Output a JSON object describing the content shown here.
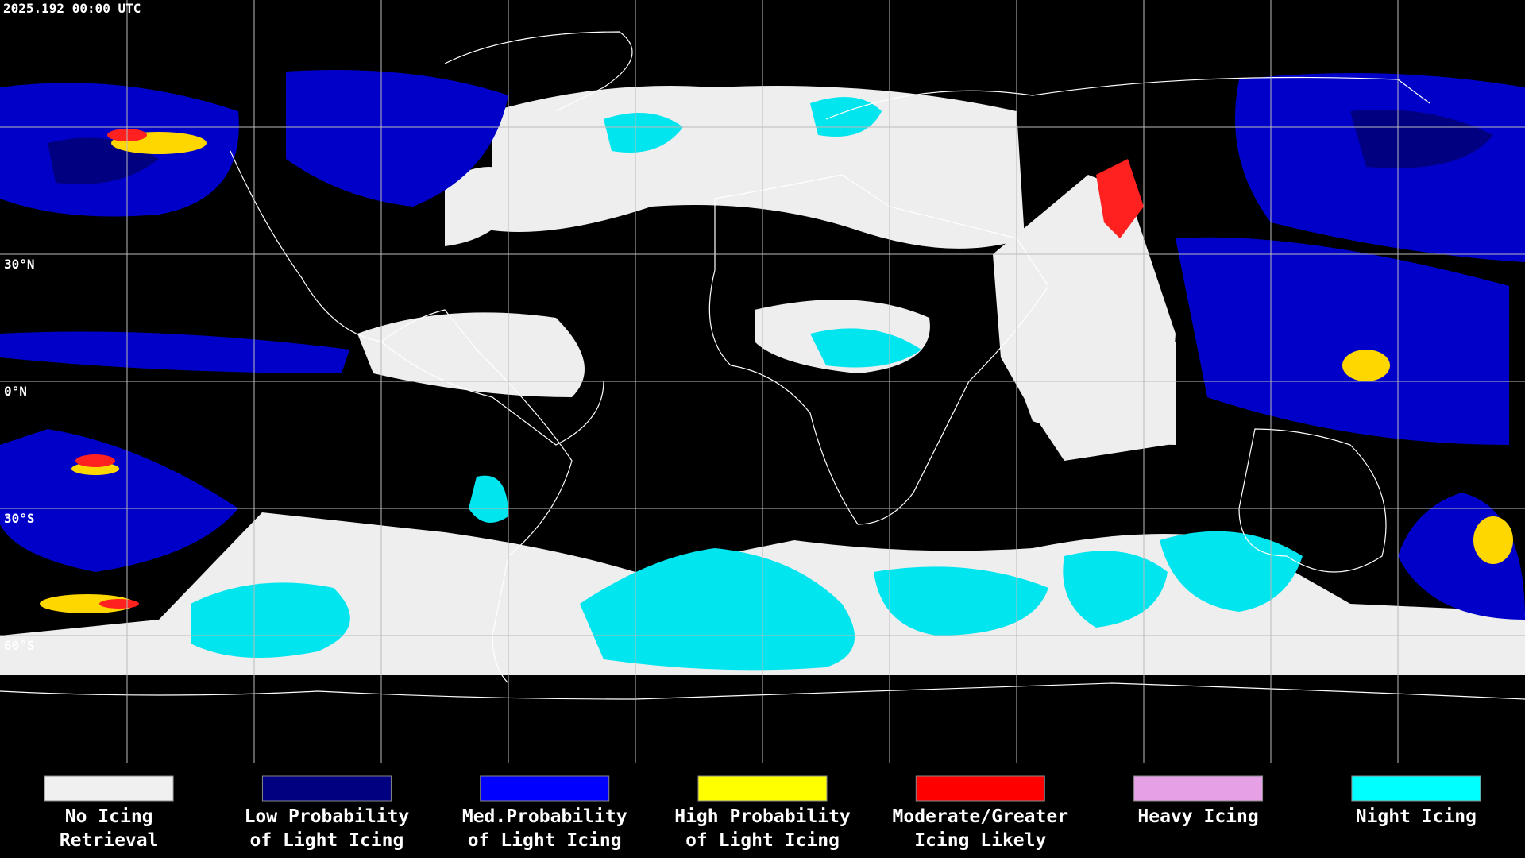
{
  "header": {
    "timestamp": "2025.192 00:00 UTC"
  },
  "map": {
    "latitude_labels": [
      "30°N",
      "0°N",
      "30°S",
      "60°S"
    ]
  },
  "legend": {
    "items": [
      {
        "color": "#f0f0f0",
        "lines": [
          "No Icing",
          "Retrieval"
        ]
      },
      {
        "color": "#000080",
        "lines": [
          "Low Probability",
          "of Light Icing"
        ]
      },
      {
        "color": "#0000ff",
        "lines": [
          "Med.Probability",
          "of Light Icing"
        ]
      },
      {
        "color": "#ffff00",
        "lines": [
          "High Probability",
          "of Light Icing"
        ]
      },
      {
        "color": "#ff0000",
        "lines": [
          "Moderate/Greater",
          "Icing Likely"
        ]
      },
      {
        "color": "#e6a0e6",
        "lines": [
          "Heavy Icing"
        ]
      },
      {
        "color": "#00ffff",
        "lines": [
          "Night Icing"
        ]
      }
    ]
  }
}
